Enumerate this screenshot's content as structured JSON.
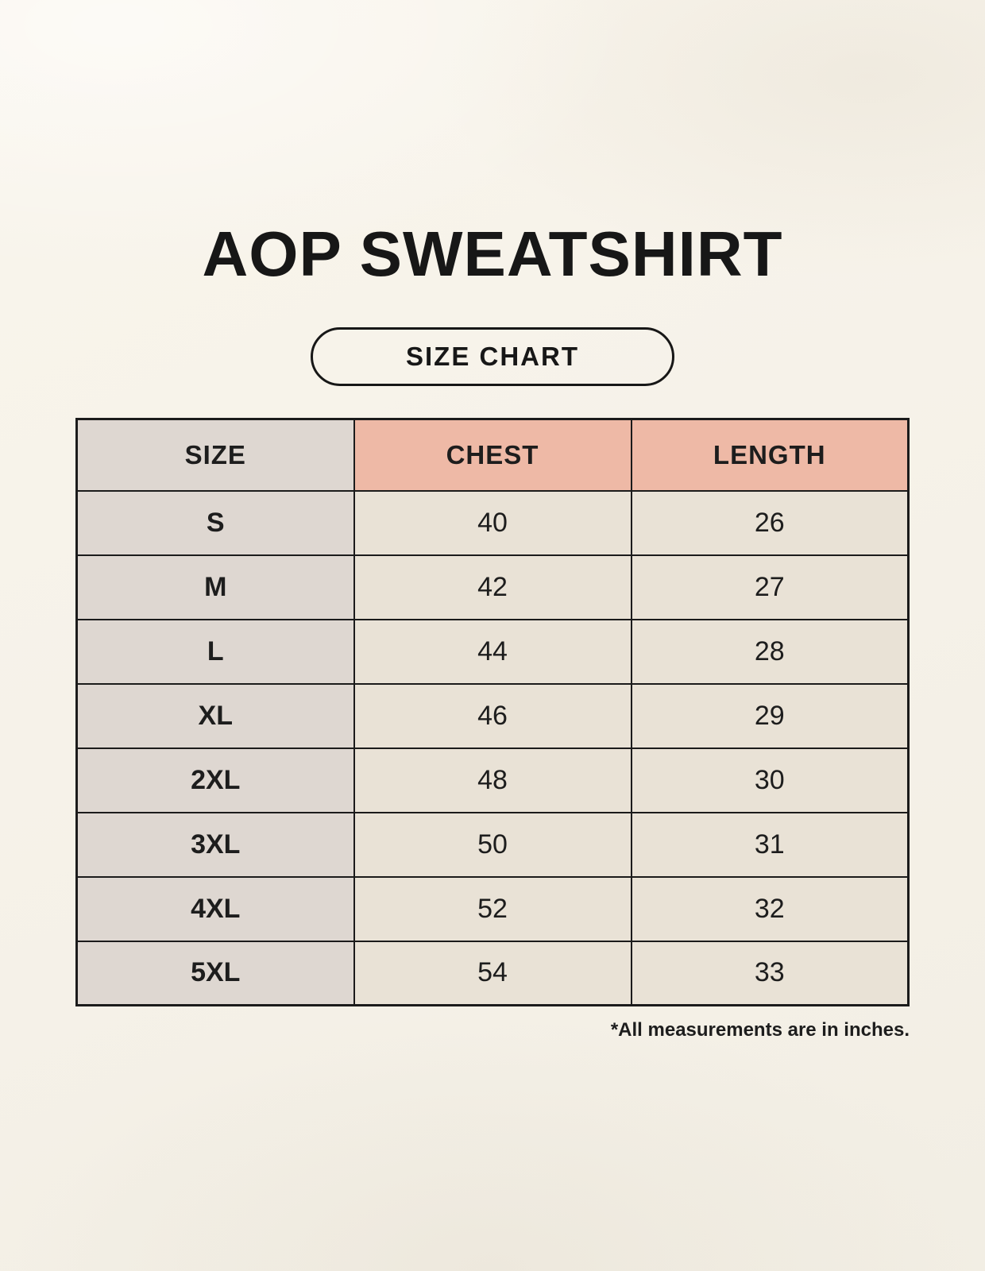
{
  "page": {
    "title": "AOP SWEATSHIRT",
    "badge_label": "SIZE CHART",
    "footnote": "*All measurements are in inches."
  },
  "colors": {
    "page_background": "#f6f2e9",
    "header_accent": "#eeb9a6",
    "size_column": "#ded7d1",
    "value_cell": "#e9e2d6",
    "border": "#1b1b1b",
    "text": "#1d1d1d"
  },
  "chart_data": {
    "type": "table",
    "title": "AOP Sweatshirt Size Chart",
    "units": "inches",
    "columns": [
      "SIZE",
      "CHEST",
      "LENGTH"
    ],
    "rows": [
      [
        "S",
        "40",
        "26"
      ],
      [
        "M",
        "42",
        "27"
      ],
      [
        "L",
        "44",
        "28"
      ],
      [
        "XL",
        "46",
        "29"
      ],
      [
        "2XL",
        "48",
        "30"
      ],
      [
        "3XL",
        "50",
        "31"
      ],
      [
        "4XL",
        "52",
        "32"
      ],
      [
        "5XL",
        "54",
        "33"
      ]
    ]
  }
}
